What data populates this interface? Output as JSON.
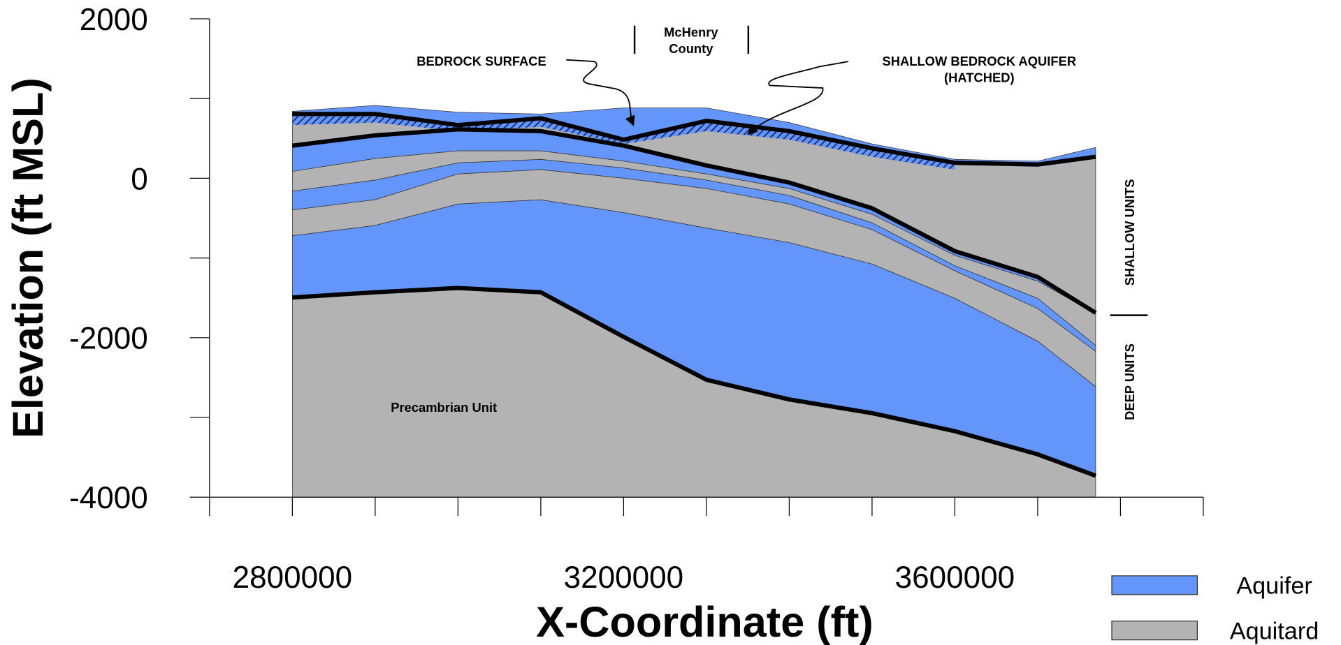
{
  "chart_data": {
    "type": "cross-section",
    "xlabel": "X-Coordinate (ft)",
    "ylabel": "Elevation (ft MSL)",
    "xlim": [
      2700000,
      3900000
    ],
    "ylim": [
      -4000,
      2000
    ],
    "xticks": [
      2800000,
      3200000,
      3600000
    ],
    "xminor_ticks": [
      2700000,
      2900000,
      3000000,
      3100000,
      3300000,
      3400000,
      3500000,
      3700000,
      3800000,
      3900000
    ],
    "yticks": [
      2000,
      0,
      -2000,
      -4000
    ],
    "yminor_ticks": [
      1000,
      -1000,
      -3000
    ],
    "x": [
      2800000,
      2900000,
      3000000,
      3100000,
      3200000,
      3300000,
      3400000,
      3500000,
      3600000,
      3700000,
      3770000
    ],
    "series": [
      {
        "name": "Aquifer",
        "color": "#6495fa",
        "layers": [
          {
            "top": [
              839,
              914,
              828,
              806,
              882,
              882,
              699,
              430,
              237,
              215,
              387
            ],
            "bottom": [
              806,
              806,
              667,
              753,
              484,
              720,
              591,
              376,
              194,
              172,
              269
            ]
          },
          {
            "top": [
              409,
              538,
              613,
              591,
              409,
              161,
              -54,
              -376,
              -914,
              -1237,
              -1688
            ],
            "bottom": [
              86,
              247,
              344,
              344,
              215,
              54,
              -129,
              -452,
              -968,
              -1290,
              -1699
            ]
          },
          {
            "top": [
              -161,
              -22,
              194,
              237,
              129,
              -22,
              -215,
              -559,
              -1097,
              -1505,
              -2097
            ],
            "bottom": [
              -398,
              -269,
              54,
              108,
              0,
              -129,
              -323,
              -645,
              -1161,
              -1634,
              -2172
            ]
          },
          {
            "top": [
              -720,
              -591,
              -323,
              -269,
              -430,
              -624,
              -806,
              -1075,
              -1505,
              -2043,
              -2613
            ],
            "bottom": [
              -1495,
              -1430,
              -1376,
              -1430,
              -1989,
              -2527,
              -2774,
              -2946,
              -3172,
              -3462,
              -3731
            ]
          }
        ]
      },
      {
        "name": "Aquitard",
        "color": "#b3b3b3",
        "layers": [
          {
            "top": [
              806,
              806,
              667,
              753,
              484,
              720,
              591,
              376,
              194,
              172,
              269
            ],
            "bottom": [
              409,
              538,
              613,
              591,
              409,
              161,
              -54,
              -376,
              -914,
              -1237,
              -1688
            ]
          },
          {
            "top": [
              86,
              247,
              344,
              344,
              215,
              54,
              -129,
              -452,
              -968,
              -1290,
              -1699
            ],
            "bottom": [
              -161,
              -22,
              194,
              237,
              129,
              -22,
              -215,
              -559,
              -1097,
              -1505,
              -2097
            ]
          },
          {
            "top": [
              -398,
              -269,
              54,
              108,
              0,
              -129,
              -323,
              -645,
              -1161,
              -1634,
              -2172
            ],
            "bottom": [
              -720,
              -591,
              -323,
              -269,
              -430,
              -624,
              -806,
              -1075,
              -1505,
              -2043,
              -2613
            ]
          },
          {
            "top": [
              -1495,
              -1430,
              -1376,
              -1430,
              -1989,
              -2527,
              -2774,
              -2946,
              -3172,
              -3462,
              -3731
            ]
          }
        ]
      }
    ],
    "hatched": {
      "top": [
        806,
        806,
        667,
        753,
        484,
        720,
        591,
        376,
        194,
        null,
        null
      ],
      "bottom": [
        667,
        699,
        591,
        645,
        430,
        591,
        484,
        269,
        108,
        null,
        null
      ]
    },
    "boundaries": [
      [
        806,
        806,
        667,
        753,
        484,
        720,
        591,
        376,
        194,
        172,
        269
      ],
      [
        409,
        538,
        613,
        591,
        409,
        161,
        -54,
        -376,
        -914,
        -1237,
        -1688
      ],
      [
        -1495,
        -1430,
        -1376,
        -1430,
        -1989,
        -2527,
        -2774,
        -2946,
        -3172,
        -3462,
        -3731
      ]
    ],
    "annotations": {
      "county": [
        "McHenry",
        "County"
      ],
      "bedrock_surface": "BEDROCK SURFACE",
      "shallow_aquifer": [
        "SHALLOW BEDROCK AQUIFER",
        "(HATCHED)"
      ],
      "precambrian": "Precambrian Unit",
      "shallow_units": "SHALLOW UNITS",
      "deep_units": "DEEP UNITS"
    }
  }
}
